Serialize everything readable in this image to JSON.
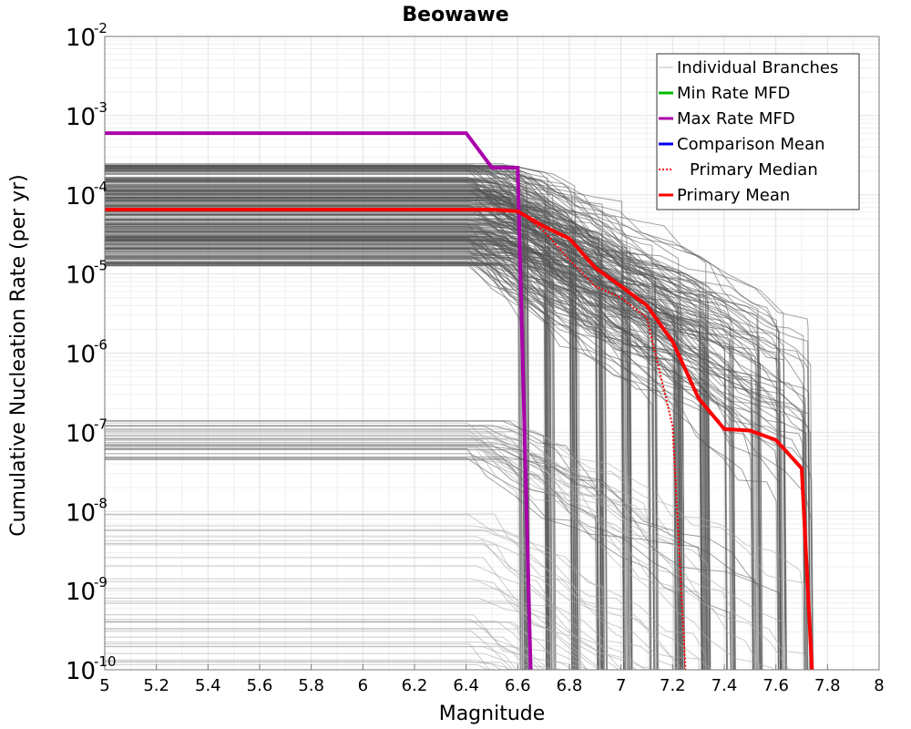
{
  "chart_data": {
    "type": "line",
    "title": "Beowawe",
    "xlabel": "Magnitude",
    "ylabel": "Cumulative Nucleation Rate (per yr)",
    "xlim": [
      5,
      8
    ],
    "ylim": [
      1e-10,
      0.01
    ],
    "yscale": "log",
    "grid": true,
    "x_ticks": [
      "5",
      "5.2",
      "5.4",
      "5.6",
      "5.8",
      "6",
      "6.2",
      "6.4",
      "6.6",
      "6.8",
      "7",
      "7.2",
      "7.4",
      "7.6",
      "7.8",
      "8"
    ],
    "y_ticks": [
      {
        "base": "10",
        "exp": "-2"
      },
      {
        "base": "10",
        "exp": "-3"
      },
      {
        "base": "10",
        "exp": "-4"
      },
      {
        "base": "10",
        "exp": "-5"
      },
      {
        "base": "10",
        "exp": "-6"
      },
      {
        "base": "10",
        "exp": "-7"
      },
      {
        "base": "10",
        "exp": "-8"
      },
      {
        "base": "10",
        "exp": "-9"
      },
      {
        "base": "10",
        "exp": "-10"
      }
    ],
    "legend_position": "top-right",
    "legend": [
      {
        "label": "Individual Branches",
        "color": "#bbbbbb",
        "style": "solid"
      },
      {
        "label": "Min Rate MFD",
        "color": "#00bb00",
        "style": "solid"
      },
      {
        "label": "Max Rate MFD",
        "color": "#aa00aa",
        "style": "solid"
      },
      {
        "label": "Comparison Mean",
        "color": "#0000ee",
        "style": "solid"
      },
      {
        "label": "Primary Median",
        "color": "#ff0000",
        "style": "dotted"
      },
      {
        "label": "Primary Mean",
        "color": "#ff0000",
        "style": "solid"
      }
    ],
    "series": [
      {
        "name": "Max Rate MFD",
        "color": "#aa00aa",
        "x": [
          5.0,
          6.4,
          6.5,
          6.6,
          6.65
        ],
        "y": [
          0.0006,
          0.0006,
          0.00022,
          0.00022,
          1e-10
        ]
      },
      {
        "name": "Primary Mean",
        "color": "#ff0000",
        "x": [
          5.0,
          6.4,
          6.5,
          6.6,
          6.7,
          6.8,
          6.9,
          7.0,
          7.1,
          7.2,
          7.3,
          7.4,
          7.5,
          7.6,
          7.7,
          7.74
        ],
        "y": [
          6.5e-05,
          6.5e-05,
          6.5e-05,
          6.2e-05,
          4e-05,
          2.8e-05,
          1.2e-05,
          7e-06,
          4e-06,
          1.4e-06,
          2.7e-07,
          1.1e-07,
          1.05e-07,
          8e-08,
          3.5e-08,
          1e-10
        ]
      },
      {
        "name": "Primary Median",
        "color": "#ff0000",
        "x": [
          5.0,
          6.4,
          6.5,
          6.6,
          6.7,
          6.8,
          6.9,
          7.0,
          7.1,
          7.2,
          7.25
        ],
        "y": [
          6.5e-05,
          6.5e-05,
          6.5e-05,
          6.3e-05,
          3.5e-05,
          1.5e-05,
          7e-06,
          5e-06,
          2.8e-06,
          1.2e-07,
          1e-10
        ]
      }
    ],
    "branch_note": "Several hundred individual logic-tree branches (gray); plateau levels mostly between 1e-5 and 4e-4, a cluster near 7e-8, and a sparse set between 1e-10 and 1e-8, each dropping steeply between M6.4 and M7.75."
  }
}
